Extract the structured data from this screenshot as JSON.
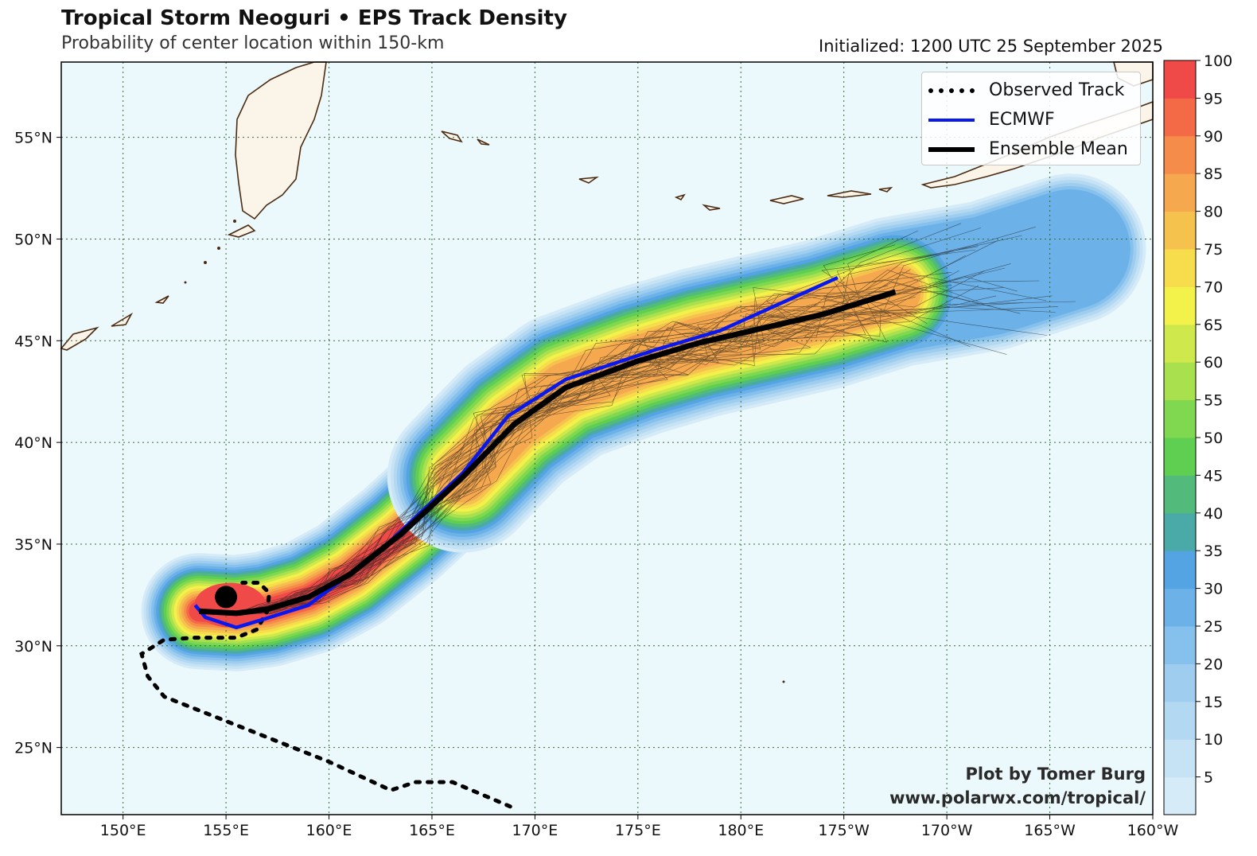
{
  "header": {
    "title": "Tropical Storm Neoguri • EPS Track Density",
    "subtitle": "Probability of center location within 150-km",
    "initialized": "Initialized: 1200 UTC 25 September 2025"
  },
  "credit": {
    "line1": "Plot by Tomer Burg",
    "line2": "www.polarwx.com/tropical/"
  },
  "legend": {
    "items": [
      {
        "label": "Observed Track",
        "style": "dotted",
        "color": "#000000"
      },
      {
        "label": "ECMWF",
        "style": "solid",
        "color": "#0a18f0"
      },
      {
        "label": "Ensemble Mean",
        "style": "solid-thick",
        "color": "#000000"
      }
    ]
  },
  "axes": {
    "lon_ticks": [
      "150°E",
      "155°E",
      "160°E",
      "165°E",
      "170°E",
      "175°E",
      "180°E",
      "175°W",
      "170°W",
      "165°W",
      "160°W"
    ],
    "lat_ticks": [
      "55°N",
      "50°N",
      "45°N",
      "40°N",
      "35°N",
      "30°N",
      "25°N"
    ],
    "lon_values": [
      150,
      155,
      160,
      165,
      170,
      175,
      180,
      185,
      190,
      195,
      200
    ],
    "lat_values": [
      55,
      50,
      45,
      40,
      35,
      30,
      25
    ],
    "lon_range": [
      147,
      200
    ],
    "lat_range": [
      21.7,
      58.7
    ]
  },
  "colorbar": {
    "labels": [
      "5",
      "10",
      "15",
      "20",
      "25",
      "30",
      "35",
      "40",
      "45",
      "50",
      "55",
      "60",
      "65",
      "70",
      "75",
      "80",
      "85",
      "90",
      "95",
      "100"
    ],
    "colors": [
      "#d6ebf8",
      "#c6e2f5",
      "#b3d8f2",
      "#9ecdef",
      "#86c0ec",
      "#6cb1e8",
      "#54a3e3",
      "#4aaaa8",
      "#52bb7c",
      "#5fcf52",
      "#80d850",
      "#a9e04e",
      "#cfe84c",
      "#f3f24a",
      "#f7dc4c",
      "#f6c24e",
      "#f6a84e",
      "#f68c4a",
      "#f46a46",
      "#ef4a48"
    ]
  },
  "tracks": {
    "observed": [
      [
        168.8,
        22.1
      ],
      [
        166,
        23.3
      ],
      [
        164.2,
        23.3
      ],
      [
        163,
        22.9
      ],
      [
        160,
        24.3
      ],
      [
        155,
        26.3
      ],
      [
        152,
        27.5
      ],
      [
        151.2,
        28.5
      ],
      [
        150.9,
        29.6
      ],
      [
        152,
        30.3
      ],
      [
        153.5,
        30.4
      ],
      [
        155.5,
        30.4
      ],
      [
        156.5,
        30.8
      ],
      [
        157,
        31.7
      ],
      [
        157.1,
        32.6
      ],
      [
        156.6,
        33.1
      ],
      [
        155.8,
        33.1
      ]
    ],
    "ecmwf": [
      [
        153.5,
        32.0
      ],
      [
        154,
        31.4
      ],
      [
        155.5,
        30.9
      ],
      [
        156.8,
        31.3
      ],
      [
        159,
        32
      ],
      [
        162.4,
        34.6
      ],
      [
        166.5,
        38.5
      ],
      [
        168.7,
        41.3
      ],
      [
        171.5,
        43.1
      ],
      [
        176,
        44.6
      ],
      [
        179,
        45.5
      ],
      [
        184.7,
        48.1
      ]
    ],
    "ensemble_mean": [
      [
        153.7,
        31.7
      ],
      [
        155.5,
        31.6
      ],
      [
        157,
        31.8
      ],
      [
        159,
        32.4
      ],
      [
        161,
        33.5
      ],
      [
        163.5,
        35.5
      ],
      [
        166.5,
        38.3
      ],
      [
        169,
        40.9
      ],
      [
        171.5,
        42.7
      ],
      [
        175,
        44.0
      ],
      [
        178,
        44.9
      ],
      [
        181,
        45.6
      ],
      [
        184,
        46.3
      ],
      [
        187.5,
        47.4
      ]
    ],
    "storm_position": [
      155.0,
      32.4
    ]
  }
}
